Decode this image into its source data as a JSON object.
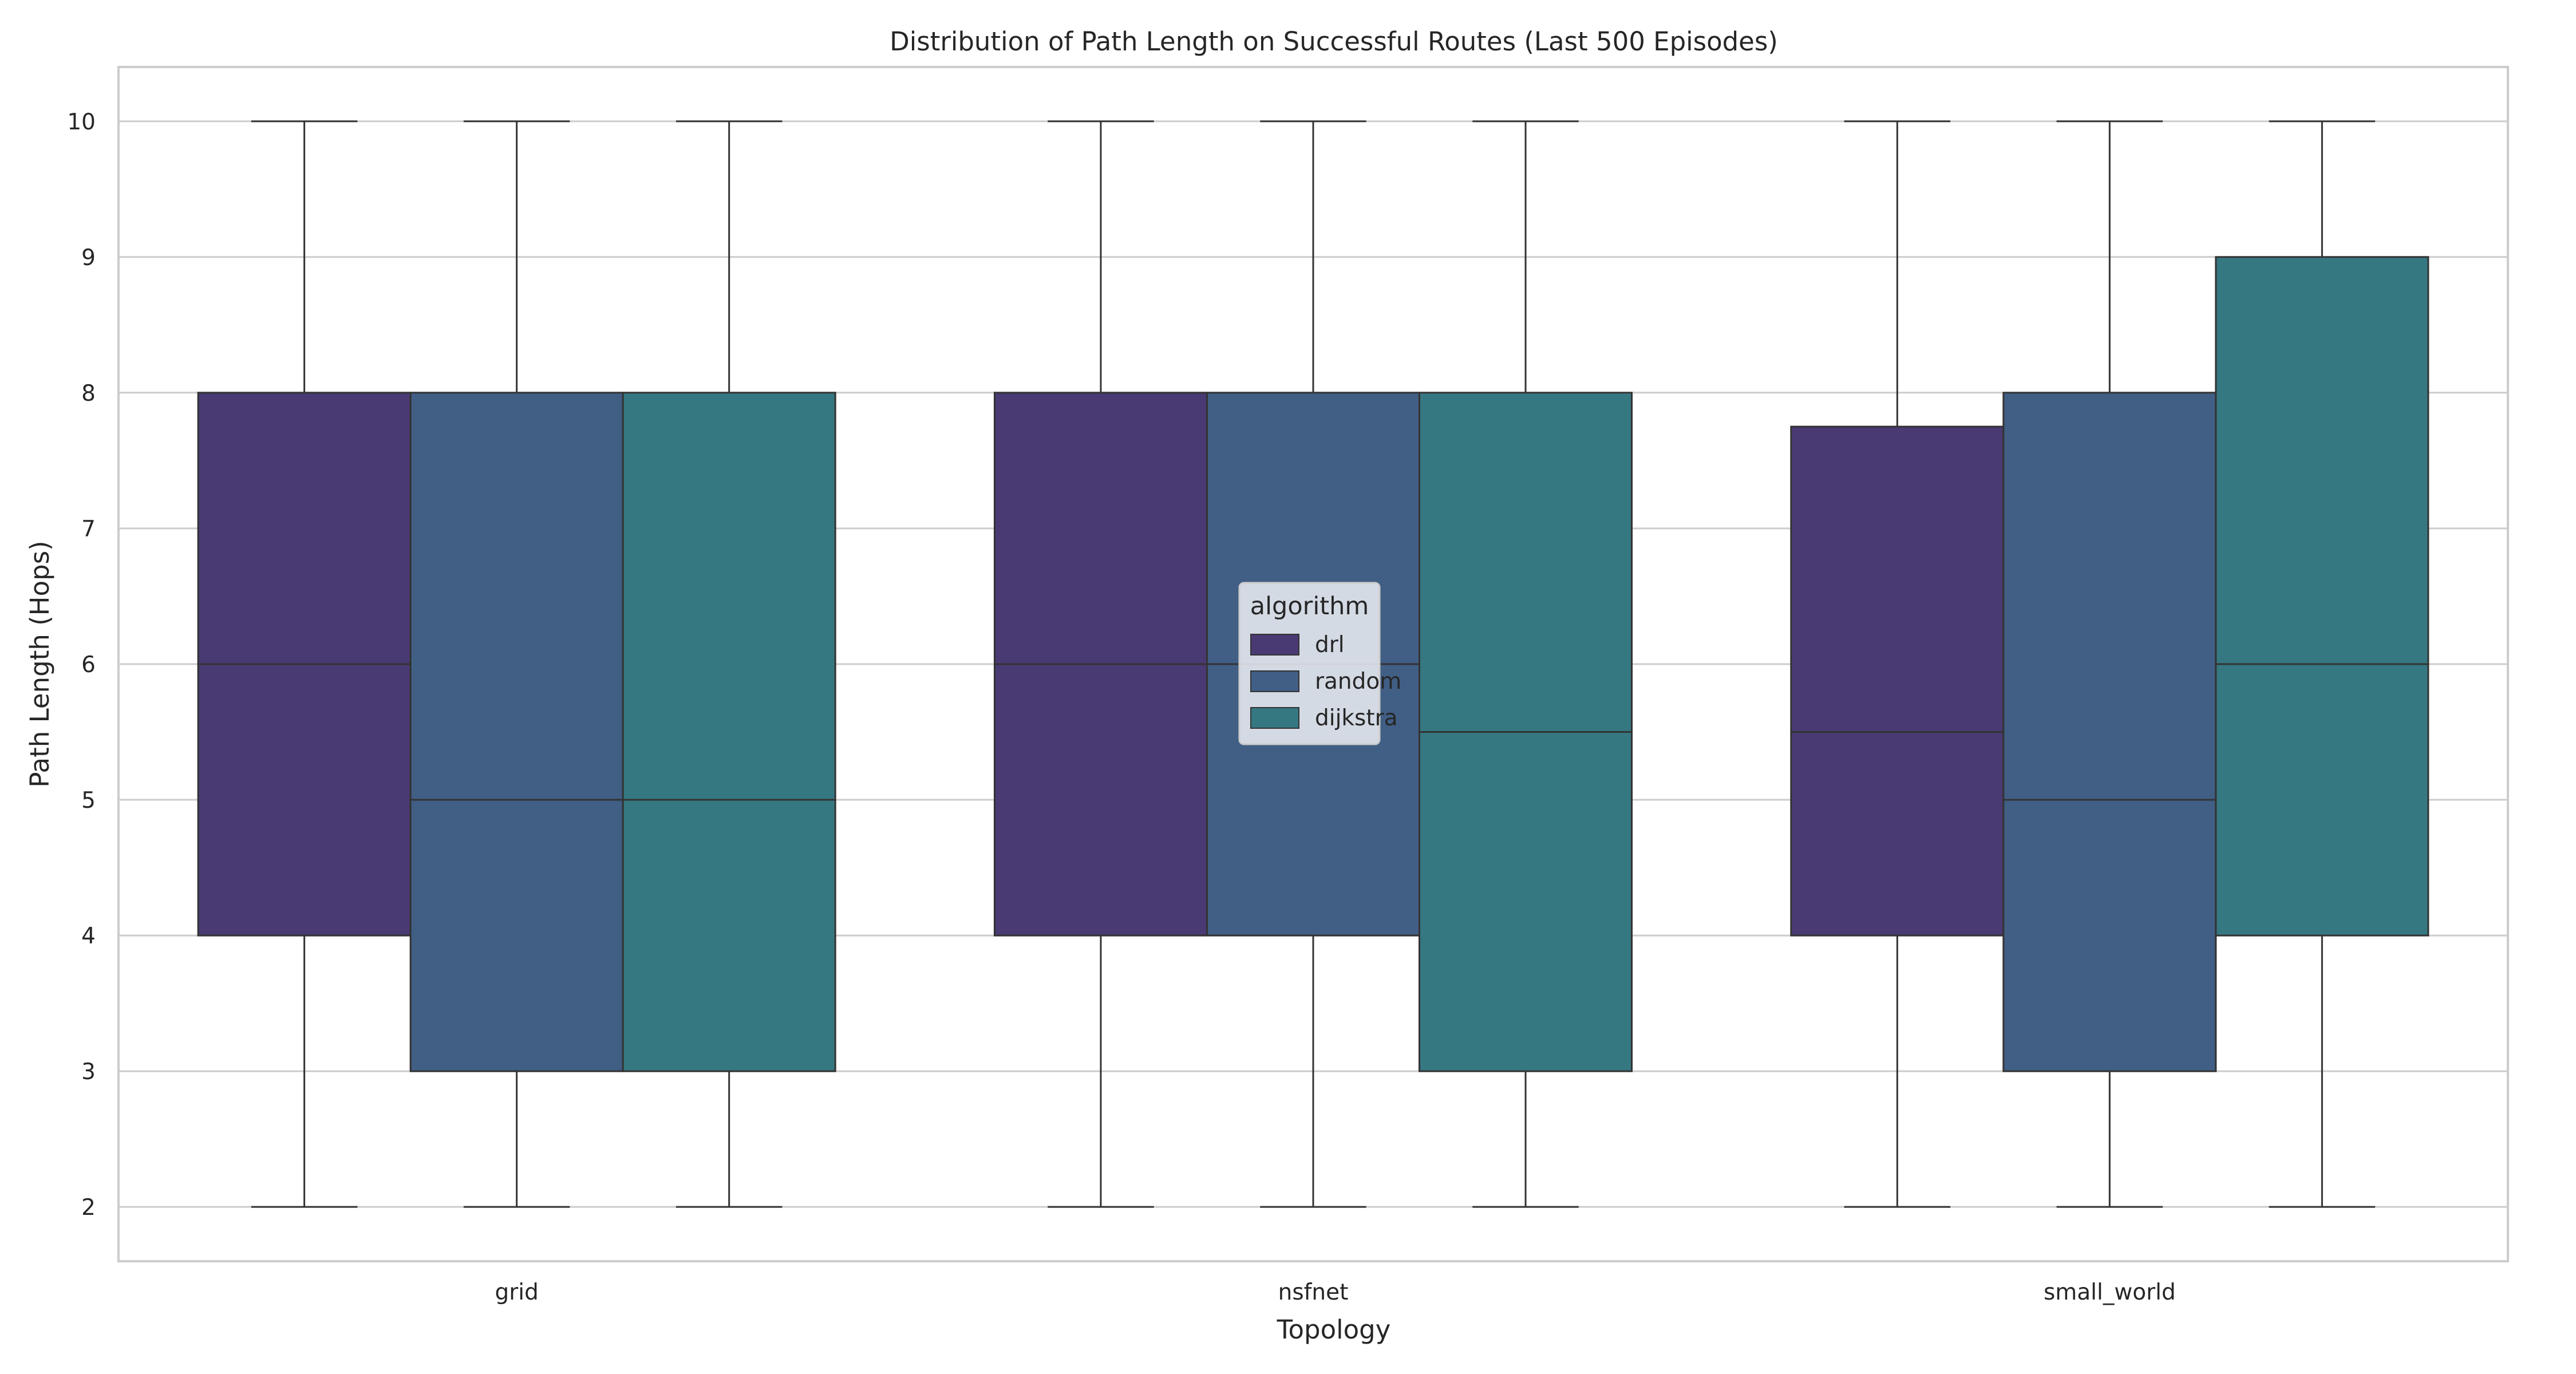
{
  "chart_data": {
    "type": "box",
    "title": "Distribution of Path Length on Successful Routes (Last 500 Episodes)",
    "xlabel": "Topology",
    "ylabel": "Path Length (Hops)",
    "categories": [
      "grid",
      "nsfnet",
      "small_world"
    ],
    "ylim": [
      1.6,
      10.4
    ],
    "yticks": [
      2,
      3,
      4,
      5,
      6,
      7,
      8,
      9,
      10
    ],
    "grid": true,
    "legend": {
      "title": "algorithm",
      "position": "center"
    },
    "series": [
      {
        "name": "drl",
        "color": "#4a3a73",
        "boxes": [
          {
            "min": 2,
            "q1": 4,
            "median": 6,
            "q3": 8,
            "max": 10
          },
          {
            "min": 2,
            "q1": 4,
            "median": 6,
            "q3": 8,
            "max": 10
          },
          {
            "min": 2,
            "q1": 4,
            "median": 5.5,
            "q3": 7.75,
            "max": 10
          }
        ]
      },
      {
        "name": "random",
        "color": "#415e85",
        "boxes": [
          {
            "min": 2,
            "q1": 3,
            "median": 5,
            "q3": 8,
            "max": 10
          },
          {
            "min": 2,
            "q1": 4,
            "median": 6,
            "q3": 8,
            "max": 10
          },
          {
            "min": 2,
            "q1": 3,
            "median": 5,
            "q3": 8,
            "max": 10
          }
        ]
      },
      {
        "name": "dijkstra",
        "color": "#357882",
        "boxes": [
          {
            "min": 2,
            "q1": 3,
            "median": 5,
            "q3": 8,
            "max": 10
          },
          {
            "min": 2,
            "q1": 3,
            "median": 5.5,
            "q3": 8,
            "max": 10
          },
          {
            "min": 2,
            "q1": 4,
            "median": 6,
            "q3": 9,
            "max": 10
          }
        ]
      }
    ]
  }
}
